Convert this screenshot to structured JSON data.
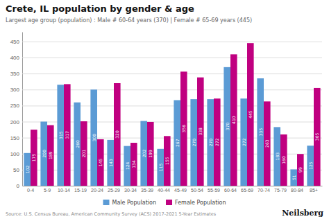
{
  "chart_data": {
    "type": "bar",
    "title": "Crete, IL population by gender & age",
    "subtitle": "Largest age group (population) : Male # 60-64 years (370) | Female # 65-69 years (445)",
    "annotations": [
      "Source: U.S. Census Bureau, American Community Survey (ACS) 2017-2021 5-Year Estimates",
      "Neilsberg"
    ],
    "categories": [
      "0-4",
      "5-9",
      "10-14",
      "15-19",
      "20-24",
      "25-29",
      "30-34",
      "35-39",
      "40-44",
      "45-49",
      "50-54",
      "55-59",
      "60-64",
      "65-69",
      "70-74",
      "75-79",
      "80-84",
      "85+"
    ],
    "series": [
      {
        "name": "Male Population",
        "color": "#5b9bd5",
        "values": [
          102,
          200,
          315,
          260,
          300,
          143,
          124,
          202,
          115,
          267,
          270,
          270,
          370,
          272,
          335,
          183,
          51,
          125
        ]
      },
      {
        "name": "Female Population",
        "color": "#c00080",
        "values": [
          175,
          189,
          317,
          201,
          145,
          320,
          134,
          199,
          155,
          356,
          338,
          272,
          410,
          445,
          263,
          160,
          99,
          305
        ]
      }
    ],
    "ylim": [
      0,
      480
    ],
    "yticks": [
      0,
      50,
      100,
      150,
      200,
      250,
      300,
      350,
      400,
      450
    ],
    "grid": true,
    "legend": "bottom",
    "data_labels": true
  }
}
